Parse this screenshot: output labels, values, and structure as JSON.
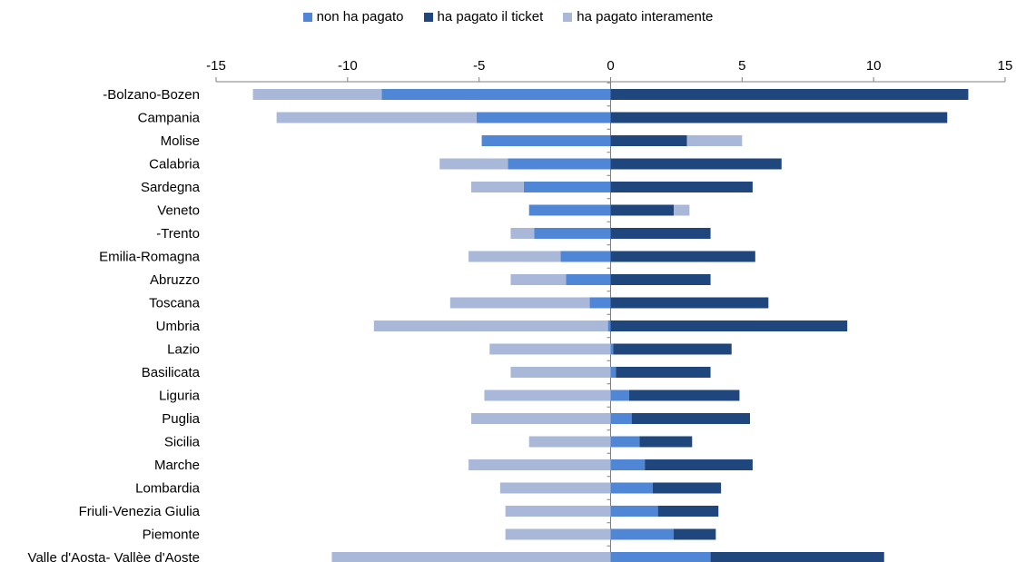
{
  "colors": {
    "non_ha_pagato": "#4f86d6",
    "ha_pagato_il_ticket": "#1f477d",
    "ha_pagato_interamente": "#a9b8d8"
  },
  "chart_data": {
    "type": "bar",
    "orientation": "horizontal",
    "stacked": "diverging",
    "title": "",
    "xlabel": "",
    "ylabel": "",
    "xlim": [
      -15,
      15
    ],
    "xticks": [
      -15,
      -10,
      -5,
      0,
      5,
      10,
      15
    ],
    "legend_position": "top",
    "grid": false,
    "categories": [
      "-Bolzano-Bozen",
      "Campania",
      "Molise",
      "Calabria",
      "Sardegna",
      "Veneto",
      "-Trento",
      "Emilia-Romagna",
      "Abruzzo",
      "Toscana",
      "Umbria",
      "Lazio",
      "Basilicata",
      "Liguria",
      "Puglia",
      "Sicilia",
      "Marche",
      "Lombardia",
      "Friuli-Venezia Giulia",
      "Piemonte",
      "Valle d'Aosta- Vallèe d'Aoste"
    ],
    "series": [
      {
        "name": "non ha pagato",
        "color_key": "non_ha_pagato",
        "values": [
          -8.7,
          -5.1,
          -4.9,
          -3.9,
          -3.3,
          -3.1,
          -2.9,
          -1.9,
          -1.7,
          -0.8,
          -0.1,
          0.1,
          0.2,
          0.7,
          0.8,
          1.1,
          1.3,
          1.6,
          1.8,
          2.4,
          3.8
        ]
      },
      {
        "name": "ha pagato il ticket",
        "color_key": "ha_pagato_il_ticket",
        "values": [
          13.6,
          12.8,
          2.9,
          6.5,
          5.4,
          2.4,
          3.8,
          5.5,
          3.8,
          6.0,
          9.0,
          4.5,
          3.6,
          4.2,
          4.5,
          2.0,
          4.1,
          2.6,
          2.3,
          1.6,
          6.6
        ]
      },
      {
        "name": "ha pagato interamente",
        "color_key": "ha_pagato_interamente",
        "values": [
          -4.9,
          -7.6,
          2.1,
          -2.6,
          -2.0,
          0.6,
          -0.9,
          -3.5,
          -2.1,
          -5.3,
          -8.9,
          -4.6,
          -3.8,
          -4.8,
          -5.3,
          -3.1,
          -5.4,
          -4.2,
          -4.0,
          -4.0,
          -10.6
        ]
      }
    ]
  }
}
